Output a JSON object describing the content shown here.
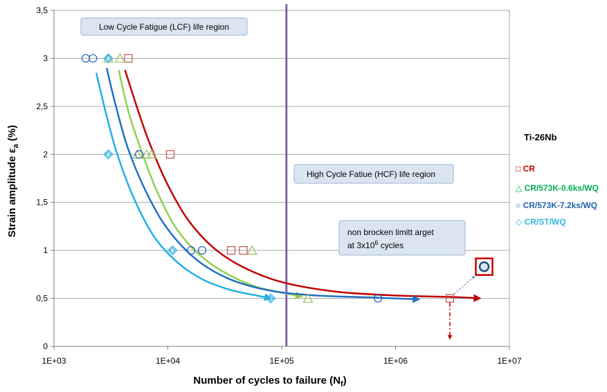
{
  "chart_data": {
    "type": "scatter",
    "title": "",
    "material_label": "Ti-26Nb",
    "xlabel_main": "Number of cycles to failure (N",
    "xlabel_sub": "f",
    "xlabel_close": ")",
    "ylabel_main": "Strain amplitude  ε",
    "ylabel_sub": "a",
    "ylabel_unit": "  (%)",
    "x_scale": "log",
    "xlim": [
      1000,
      10000000
    ],
    "ylim": [
      0,
      3.5
    ],
    "x_ticks": [
      {
        "value": 1000,
        "label": "1E+03"
      },
      {
        "value": 10000,
        "label": "1E+04"
      },
      {
        "value": 100000,
        "label": "1E+05"
      },
      {
        "value": 1000000,
        "label": "1E+06"
      },
      {
        "value": 10000000,
        "label": "1E+07"
      }
    ],
    "y_ticks": [
      {
        "value": 0,
        "label": "0"
      },
      {
        "value": 0.5,
        "label": "0,5"
      },
      {
        "value": 1,
        "label": "1"
      },
      {
        "value": 1.5,
        "label": "1,5"
      },
      {
        "value": 2,
        "label": "2"
      },
      {
        "value": 2.5,
        "label": "2,5"
      },
      {
        "value": 3,
        "label": "3"
      },
      {
        "value": 3.5,
        "label": "3,5"
      }
    ],
    "grid": "horizontal",
    "legend_position": "right",
    "series": [
      {
        "name": "CR",
        "legend_symbol": "□",
        "marker": "square",
        "color": "#c0504d",
        "line_color": "#c00000",
        "points": [
          [
            4500,
            3
          ],
          [
            10500,
            2
          ],
          [
            36000,
            1
          ],
          [
            46000,
            1
          ],
          [
            3000000,
            0.5
          ]
        ],
        "curve": [
          [
            4200,
            2.88
          ],
          [
            5500,
            2.45
          ],
          [
            7000,
            2.1
          ],
          [
            10000,
            1.68
          ],
          [
            15000,
            1.32
          ],
          [
            25000,
            1.03
          ],
          [
            45000,
            0.83
          ],
          [
            100000,
            0.67
          ],
          [
            300000,
            0.57
          ],
          [
            1000000,
            0.53
          ],
          [
            3000000,
            0.515
          ],
          [
            5500000,
            0.5
          ]
        ]
      },
      {
        "name": "CR/573K-0.6ks/WQ",
        "legend_symbol": "△",
        "marker": "triangle",
        "color": "#9bbb59",
        "line_color": "#92d050",
        "points": [
          [
            3000,
            3
          ],
          [
            3800,
            3
          ],
          [
            5400,
            2
          ],
          [
            6500,
            2
          ],
          [
            7200,
            2
          ],
          [
            55000,
            1
          ],
          [
            170000,
            0.5
          ]
        ],
        "curve": [
          [
            3700,
            2.88
          ],
          [
            4500,
            2.45
          ],
          [
            5800,
            2.05
          ],
          [
            8000,
            1.62
          ],
          [
            12000,
            1.22
          ],
          [
            20000,
            0.93
          ],
          [
            35000,
            0.74
          ],
          [
            60000,
            0.62
          ],
          [
            100000,
            0.56
          ],
          [
            150000,
            0.52
          ]
        ]
      },
      {
        "name": "CR/573K-7.2ks/WQ",
        "legend_symbol": "○",
        "marker": "circle",
        "color": "#1f60b0",
        "line_color": "#1f70c1",
        "points": [
          [
            1900,
            3
          ],
          [
            2200,
            3
          ],
          [
            5600,
            2
          ],
          [
            16000,
            1
          ],
          [
            20000,
            1
          ],
          [
            700000,
            0.5
          ]
        ],
        "curve": [
          [
            2900,
            2.9
          ],
          [
            3500,
            2.5
          ],
          [
            4500,
            2.05
          ],
          [
            6500,
            1.6
          ],
          [
            10000,
            1.22
          ],
          [
            18000,
            0.9
          ],
          [
            35000,
            0.7
          ],
          [
            80000,
            0.58
          ],
          [
            200000,
            0.53
          ],
          [
            600000,
            0.51
          ],
          [
            1600000,
            0.49
          ]
        ]
      },
      {
        "name": "CR/ST/WQ",
        "legend_symbol": "◇",
        "marker": "diamond",
        "color": "#33b5e5",
        "line_color": "#1fb0e8",
        "points": [
          [
            3000,
            3
          ],
          [
            3000,
            2
          ],
          [
            11000,
            1
          ],
          [
            80000,
            0.5
          ]
        ],
        "curve": [
          [
            2350,
            2.85
          ],
          [
            2900,
            2.4
          ],
          [
            3600,
            2.0
          ],
          [
            5000,
            1.55
          ],
          [
            7500,
            1.15
          ],
          [
            12000,
            0.88
          ],
          [
            20000,
            0.7
          ],
          [
            35000,
            0.59
          ],
          [
            60000,
            0.53
          ],
          [
            80000,
            0.5
          ]
        ]
      }
    ],
    "vertical_line": {
      "x": 110000,
      "color": "#8064a2"
    },
    "annotations": {
      "lcf": "Low Cycle Fatigue (LCF) life region",
      "hcf": "High Cycle  Fatiue (HCF) life region",
      "runout_line1": "non brocken limitt arget",
      "runout_line2_a": "at 3x10",
      "runout_line2_sup": "6",
      "runout_line2_b": "  cycles"
    },
    "runout_point": {
      "x": 3000000,
      "y": 0.5
    },
    "runout_marker": {
      "x": 6000000,
      "y": 0.83
    }
  }
}
